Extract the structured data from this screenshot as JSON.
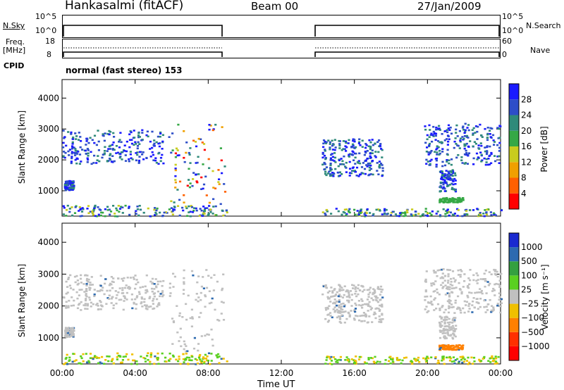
{
  "header": {
    "station": "Hankasalmi (fitACF)",
    "beam": "Beam 00",
    "date": "27/Jan/2009"
  },
  "top_panels": {
    "nsky_label": "N.Sky",
    "nsky_ticks": [
      "10^5",
      "10^0"
    ],
    "nsearch_label": "N.Search",
    "nsearch_ticks": [
      "10^5",
      "10^0"
    ],
    "freq_label_1": "Freq.",
    "freq_label_2": "[MHz]",
    "freq_ticks": [
      "18",
      "8"
    ],
    "nave_label": "Nave",
    "nave_ticks": [
      "60",
      "0"
    ],
    "cpid_label": "CPID",
    "cpid_value": "normal (fast stereo) 153"
  },
  "chart_data": [
    {
      "type": "heatmap",
      "name": "power",
      "ylabel": "Slant Range [km]",
      "y_ticks": [
        "4000",
        "3000",
        "2000",
        "1000"
      ],
      "ylim": [
        180,
        4600
      ],
      "x_ticks": [
        "00:00",
        "04:00",
        "08:00",
        "12:00",
        "16:00",
        "20:00",
        "00:00"
      ],
      "xlabel": "Time UT",
      "colorbar_label": "Power [dB]",
      "colorbar_ticks": [
        "28",
        "24",
        "20",
        "16",
        "12",
        "8",
        "4"
      ],
      "colorbar_colors": [
        "#1a1aff",
        "#2d4ec8",
        "#2f8a7a",
        "#35a845",
        "#c8cc1e",
        "#f0a000",
        "#ff6000",
        "#ff0000"
      ]
    },
    {
      "type": "heatmap",
      "name": "velocity",
      "ylabel": "Slant Range [km]",
      "y_ticks": [
        "4000",
        "3000",
        "2000",
        "1000"
      ],
      "ylim": [
        180,
        4600
      ],
      "x_ticks": [
        "00:00",
        "04:00",
        "08:00",
        "12:00",
        "16:00",
        "20:00",
        "00:00"
      ],
      "xlabel": "Time UT",
      "colorbar_label": "Velocity [m s⁻¹]",
      "colorbar_ticks": [
        "1000",
        "500",
        "100",
        "25",
        "−25",
        "−100",
        "−500",
        "−1000"
      ],
      "colorbar_colors": [
        "#1a2ad0",
        "#2d6ab0",
        "#34a040",
        "#5ad020",
        "#c0c0c0",
        "#f0c000",
        "#ff8000",
        "#ff3000",
        "#ff0000"
      ]
    }
  ]
}
